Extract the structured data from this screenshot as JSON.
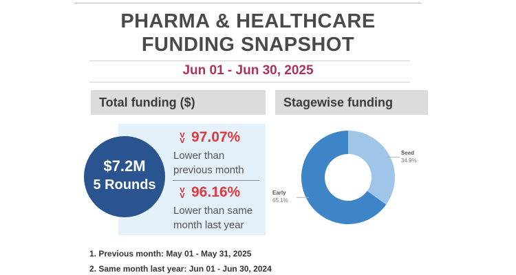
{
  "header": {
    "title_line1": "PHARMA & HEALTHCARE",
    "title_line2": "FUNDING SNAPSHOT",
    "date_range": "Jun 01 - Jun 30, 2025"
  },
  "total_funding": {
    "heading": "Total funding ($)",
    "amount": "$7.2M",
    "rounds": "5 Rounds",
    "vs_previous_month": {
      "percent": "97.07%",
      "label_line1": "Lower than",
      "label_line2": "previous month"
    },
    "vs_last_year": {
      "percent": "96.16%",
      "label_line1": "Lower than same",
      "label_line2": "month last year"
    }
  },
  "notes": [
    "1. Previous month: May 01 - May 31, 2025",
    "2. Same month last year: Jun 01 - Jun 30, 2024"
  ],
  "stagewise": {
    "heading": "Stagewise funding"
  },
  "colors": {
    "title": "#4a4a4a",
    "date": "#b0305c",
    "decline": "#e0393e",
    "circle": "#2a5490",
    "kpi_bg": "#e4f1fb"
  },
  "chart_data": {
    "type": "pie",
    "variant": "donut",
    "title": "Stagewise funding",
    "slices": [
      {
        "label": "Seed",
        "value": 34.9,
        "display": "34.9%",
        "color": "#9fc5e8"
      },
      {
        "label": "Early",
        "value": 65.1,
        "display": "65.1%",
        "color": "#3d85c6"
      }
    ]
  }
}
